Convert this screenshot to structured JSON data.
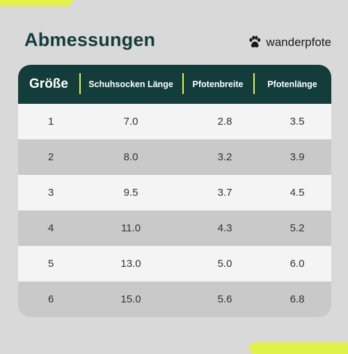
{
  "title": "Abmessungen",
  "brand": {
    "name": "wanderpfote",
    "icon": "paw-icon"
  },
  "colors": {
    "header_bg": "#123d3b",
    "accent": "#e3f24a",
    "row_light": "#f4f4f4",
    "row_dark": "#c9c9c9",
    "page_bg": "#d9d9d9"
  },
  "table": {
    "headers": [
      "Größe",
      "Schuhsocken Länge",
      "Pfotenbreite",
      "Pfotenlänge"
    ],
    "rows": [
      [
        "1",
        "7.0",
        "2.8",
        "3.5"
      ],
      [
        "2",
        "8.0",
        "3.2",
        "3.9"
      ],
      [
        "3",
        "9.5",
        "3.7",
        "4.5"
      ],
      [
        "4",
        "11.0",
        "4.3",
        "5.2"
      ],
      [
        "5",
        "13.0",
        "5.0",
        "6.0"
      ],
      [
        "6",
        "15.0",
        "5.6",
        "6.8"
      ]
    ]
  }
}
